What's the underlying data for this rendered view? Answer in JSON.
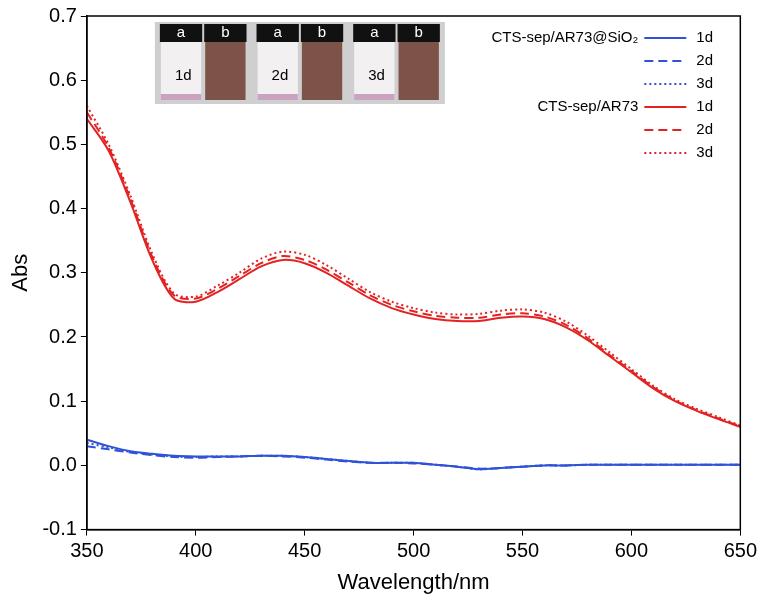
{
  "chart_data": {
    "type": "line",
    "x_label": "Wavelength/nm",
    "y_label": "Abs",
    "x": [
      350,
      360,
      370,
      380,
      390,
      400,
      410,
      420,
      430,
      440,
      450,
      460,
      470,
      480,
      490,
      500,
      510,
      520,
      530,
      540,
      550,
      560,
      570,
      580,
      590,
      600,
      610,
      620,
      630,
      640,
      650
    ],
    "series": [
      {
        "group": "CTS-sep/AR73@SiO₂",
        "name": "1d",
        "color": "#2f52d8",
        "line_style": "solid",
        "values": [
          0.04,
          0.03,
          0.022,
          0.018,
          0.015,
          0.014,
          0.014,
          0.014,
          0.015,
          0.015,
          0.013,
          0.01,
          0.007,
          0.004,
          0.004,
          0.004,
          0.001,
          -0.002,
          -0.006,
          -0.004,
          -0.002,
          0.0,
          0.0,
          0.001,
          0.001,
          0.001,
          0.001,
          0.001,
          0.001,
          0.001,
          0.001
        ]
      },
      {
        "group": "CTS-sep/AR73@SiO₂",
        "name": "2d",
        "color": "#2f52d8",
        "line_style": "dashed",
        "values": [
          0.03,
          0.025,
          0.02,
          0.016,
          0.013,
          0.012,
          0.013,
          0.014,
          0.015,
          0.014,
          0.012,
          0.009,
          0.006,
          0.004,
          0.004,
          0.003,
          0.001,
          -0.002,
          -0.005,
          -0.004,
          -0.002,
          0.0,
          0.0,
          0.001,
          0.001,
          0.001,
          0.001,
          0.001,
          0.001,
          0.001,
          0.001
        ]
      },
      {
        "group": "CTS-sep/AR73@SiO₂",
        "name": "3d",
        "color": "#2f52d8",
        "line_style": "dotted",
        "values": [
          0.035,
          0.028,
          0.021,
          0.017,
          0.014,
          0.013,
          0.014,
          0.014,
          0.015,
          0.015,
          0.013,
          0.01,
          0.007,
          0.004,
          0.004,
          0.004,
          0.001,
          -0.002,
          -0.006,
          -0.004,
          -0.002,
          0.0,
          0.0,
          0.001,
          0.001,
          0.001,
          0.001,
          0.001,
          0.001,
          0.001,
          0.001
        ]
      },
      {
        "group": "CTS-sep/AR73",
        "name": "1d",
        "color": "#e32222",
        "line_style": "solid",
        "values": [
          0.54,
          0.49,
          0.41,
          0.32,
          0.26,
          0.255,
          0.27,
          0.29,
          0.31,
          0.32,
          0.315,
          0.3,
          0.28,
          0.26,
          0.245,
          0.235,
          0.228,
          0.225,
          0.225,
          0.23,
          0.232,
          0.228,
          0.215,
          0.195,
          0.17,
          0.145,
          0.12,
          0.1,
          0.085,
          0.072,
          0.06
        ]
      },
      {
        "group": "CTS-sep/AR73",
        "name": "2d",
        "color": "#e32222",
        "line_style": "dashed",
        "values": [
          0.55,
          0.495,
          0.415,
          0.325,
          0.265,
          0.26,
          0.275,
          0.295,
          0.315,
          0.326,
          0.32,
          0.305,
          0.285,
          0.265,
          0.25,
          0.24,
          0.233,
          0.23,
          0.23,
          0.235,
          0.237,
          0.232,
          0.219,
          0.198,
          0.172,
          0.147,
          0.122,
          0.101,
          0.086,
          0.073,
          0.061
        ]
      },
      {
        "group": "CTS-sep/AR73",
        "name": "3d",
        "color": "#e32222",
        "line_style": "dotted",
        "values": [
          0.56,
          0.5,
          0.42,
          0.33,
          0.268,
          0.263,
          0.28,
          0.3,
          0.322,
          0.333,
          0.328,
          0.312,
          0.291,
          0.27,
          0.255,
          0.245,
          0.238,
          0.235,
          0.236,
          0.241,
          0.243,
          0.238,
          0.224,
          0.202,
          0.176,
          0.15,
          0.124,
          0.103,
          0.088,
          0.075,
          0.062
        ]
      }
    ],
    "xlim": [
      350,
      650
    ],
    "xticks": [
      350,
      400,
      450,
      500,
      550,
      600,
      650
    ],
    "ylim": [
      -0.1,
      0.7
    ],
    "yticks": [
      -0.1,
      {
        "value": 0,
        "label": "0.0"
      },
      0.1,
      0.2,
      0.3,
      0.4,
      0.5,
      0.6,
      0.7
    ],
    "grid": false,
    "legend": "upper right",
    "inset": {
      "panels": [
        {
          "label": "1d",
          "vials": [
            "a",
            "b"
          ]
        },
        {
          "label": "2d",
          "vials": [
            "a",
            "b"
          ]
        },
        {
          "label": "3d",
          "vials": [
            "a",
            "b"
          ]
        }
      ]
    }
  }
}
